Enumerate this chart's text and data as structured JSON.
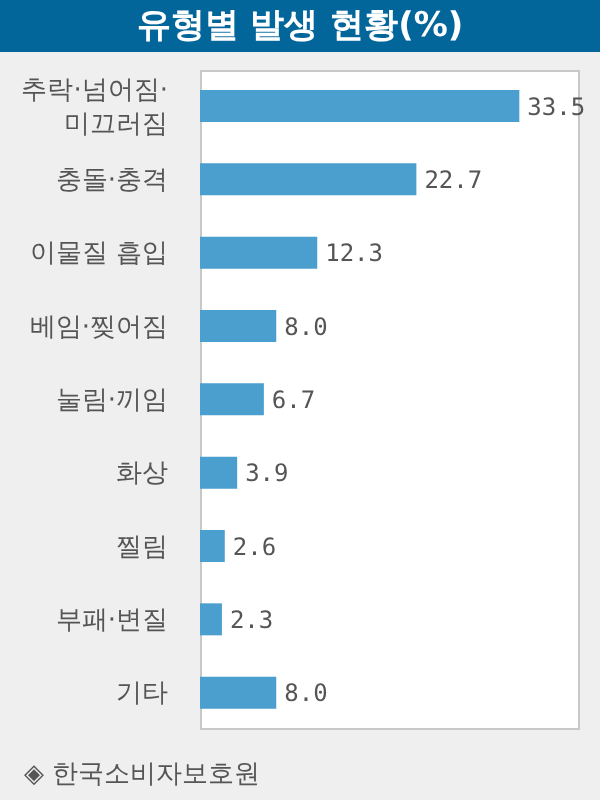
{
  "chart_data": {
    "type": "bar",
    "orientation": "horizontal",
    "title": "유형별 발생 현황(%)",
    "categories": [
      "추락·넘어짐·미끄러짐",
      "충돌·충격",
      "이물질 흡입",
      "베임·찢어짐",
      "눌림·끼임",
      "화상",
      "찔림",
      "부패·변질",
      "기타"
    ],
    "values": [
      33.5,
      22.7,
      12.3,
      8.0,
      6.7,
      3.9,
      2.6,
      2.3,
      8.0
    ],
    "value_labels": [
      "33.5",
      "22.7",
      "12.3",
      "8.0",
      "6.7",
      "3.9",
      "2.6",
      "2.3",
      "8.0"
    ],
    "color": "#4a9fcf",
    "annotations": [
      "◈ 한국소비자보호원"
    ]
  }
}
